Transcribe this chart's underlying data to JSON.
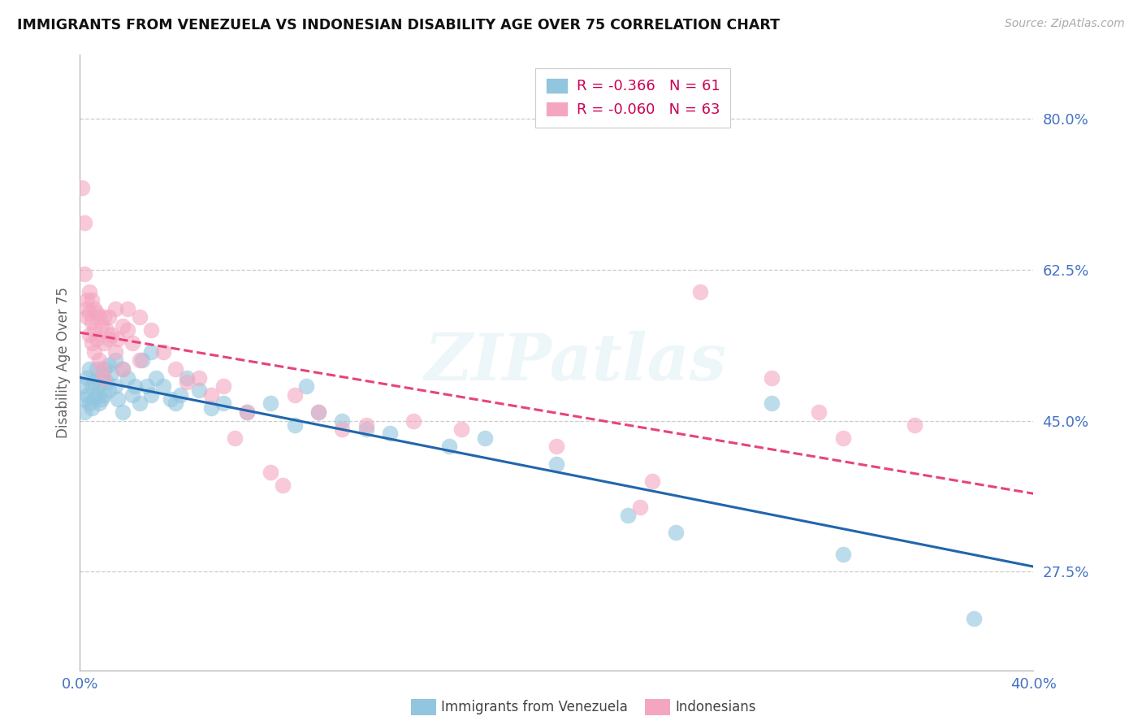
{
  "title": "IMMIGRANTS FROM VENEZUELA VS INDONESIAN DISABILITY AGE OVER 75 CORRELATION CHART",
  "source": "Source: ZipAtlas.com",
  "ylabel": "Disability Age Over 75",
  "ytick_labels": [
    "80.0%",
    "62.5%",
    "45.0%",
    "27.5%"
  ],
  "ytick_values": [
    0.8,
    0.625,
    0.45,
    0.275
  ],
  "xlim": [
    0.0,
    0.4
  ],
  "ylim": [
    0.16,
    0.875
  ],
  "legend_r1": "R = -0.366",
  "legend_n1": "N = 61",
  "legend_r2": "R = -0.060",
  "legend_n2": "N = 63",
  "color_blue": "#92c5de",
  "color_pink": "#f4a6c0",
  "trendline_blue": "#2166ac",
  "trendline_pink": "#e8437a",
  "watermark": "ZIPatlas",
  "background": "#ffffff",
  "blue_points": [
    [
      0.001,
      0.49
    ],
    [
      0.002,
      0.475
    ],
    [
      0.002,
      0.46
    ],
    [
      0.003,
      0.5
    ],
    [
      0.003,
      0.48
    ],
    [
      0.004,
      0.51
    ],
    [
      0.004,
      0.47
    ],
    [
      0.005,
      0.49
    ],
    [
      0.005,
      0.465
    ],
    [
      0.006,
      0.495
    ],
    [
      0.006,
      0.475
    ],
    [
      0.007,
      0.51
    ],
    [
      0.007,
      0.48
    ],
    [
      0.008,
      0.49
    ],
    [
      0.008,
      0.47
    ],
    [
      0.009,
      0.5
    ],
    [
      0.009,
      0.475
    ],
    [
      0.01,
      0.51
    ],
    [
      0.01,
      0.48
    ],
    [
      0.011,
      0.495
    ],
    [
      0.012,
      0.515
    ],
    [
      0.012,
      0.485
    ],
    [
      0.013,
      0.505
    ],
    [
      0.015,
      0.52
    ],
    [
      0.015,
      0.49
    ],
    [
      0.016,
      0.475
    ],
    [
      0.018,
      0.51
    ],
    [
      0.018,
      0.46
    ],
    [
      0.02,
      0.5
    ],
    [
      0.022,
      0.48
    ],
    [
      0.023,
      0.49
    ],
    [
      0.025,
      0.47
    ],
    [
      0.026,
      0.52
    ],
    [
      0.028,
      0.49
    ],
    [
      0.03,
      0.53
    ],
    [
      0.03,
      0.48
    ],
    [
      0.032,
      0.5
    ],
    [
      0.035,
      0.49
    ],
    [
      0.038,
      0.475
    ],
    [
      0.04,
      0.47
    ],
    [
      0.042,
      0.48
    ],
    [
      0.045,
      0.5
    ],
    [
      0.05,
      0.485
    ],
    [
      0.055,
      0.465
    ],
    [
      0.06,
      0.47
    ],
    [
      0.07,
      0.46
    ],
    [
      0.08,
      0.47
    ],
    [
      0.09,
      0.445
    ],
    [
      0.095,
      0.49
    ],
    [
      0.1,
      0.46
    ],
    [
      0.11,
      0.45
    ],
    [
      0.12,
      0.44
    ],
    [
      0.13,
      0.435
    ],
    [
      0.155,
      0.42
    ],
    [
      0.17,
      0.43
    ],
    [
      0.2,
      0.4
    ],
    [
      0.23,
      0.34
    ],
    [
      0.25,
      0.32
    ],
    [
      0.29,
      0.47
    ],
    [
      0.32,
      0.295
    ],
    [
      0.375,
      0.22
    ]
  ],
  "pink_points": [
    [
      0.001,
      0.72
    ],
    [
      0.002,
      0.68
    ],
    [
      0.002,
      0.62
    ],
    [
      0.003,
      0.59
    ],
    [
      0.003,
      0.58
    ],
    [
      0.003,
      0.57
    ],
    [
      0.004,
      0.6
    ],
    [
      0.004,
      0.575
    ],
    [
      0.004,
      0.55
    ],
    [
      0.005,
      0.59
    ],
    [
      0.005,
      0.565
    ],
    [
      0.005,
      0.54
    ],
    [
      0.006,
      0.58
    ],
    [
      0.006,
      0.555
    ],
    [
      0.006,
      0.53
    ],
    [
      0.007,
      0.575
    ],
    [
      0.007,
      0.545
    ],
    [
      0.008,
      0.57
    ],
    [
      0.008,
      0.52
    ],
    [
      0.009,
      0.56
    ],
    [
      0.009,
      0.51
    ],
    [
      0.01,
      0.57
    ],
    [
      0.01,
      0.54
    ],
    [
      0.01,
      0.5
    ],
    [
      0.011,
      0.555
    ],
    [
      0.012,
      0.57
    ],
    [
      0.012,
      0.545
    ],
    [
      0.013,
      0.55
    ],
    [
      0.015,
      0.58
    ],
    [
      0.015,
      0.53
    ],
    [
      0.016,
      0.545
    ],
    [
      0.018,
      0.56
    ],
    [
      0.018,
      0.51
    ],
    [
      0.02,
      0.58
    ],
    [
      0.02,
      0.555
    ],
    [
      0.022,
      0.54
    ],
    [
      0.025,
      0.57
    ],
    [
      0.025,
      0.52
    ],
    [
      0.03,
      0.555
    ],
    [
      0.035,
      0.53
    ],
    [
      0.04,
      0.51
    ],
    [
      0.045,
      0.495
    ],
    [
      0.05,
      0.5
    ],
    [
      0.055,
      0.48
    ],
    [
      0.06,
      0.49
    ],
    [
      0.065,
      0.43
    ],
    [
      0.07,
      0.46
    ],
    [
      0.08,
      0.39
    ],
    [
      0.085,
      0.375
    ],
    [
      0.09,
      0.48
    ],
    [
      0.1,
      0.46
    ],
    [
      0.11,
      0.44
    ],
    [
      0.12,
      0.445
    ],
    [
      0.14,
      0.45
    ],
    [
      0.16,
      0.44
    ],
    [
      0.2,
      0.42
    ],
    [
      0.235,
      0.35
    ],
    [
      0.24,
      0.38
    ],
    [
      0.26,
      0.6
    ],
    [
      0.29,
      0.5
    ],
    [
      0.31,
      0.46
    ],
    [
      0.32,
      0.43
    ],
    [
      0.35,
      0.445
    ]
  ]
}
